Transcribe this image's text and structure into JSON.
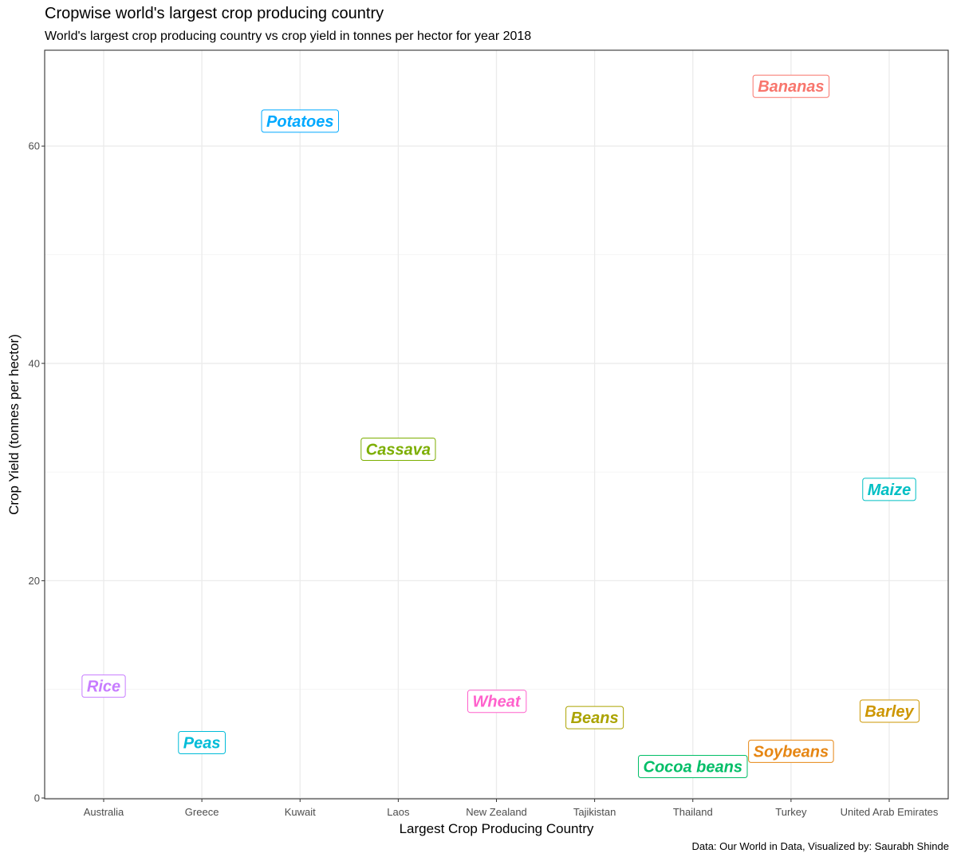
{
  "header": {
    "title": "Cropwise world's largest crop producing country",
    "subtitle": "World's largest crop producing country vs crop yield in tonnes per hector for year 2018"
  },
  "caption": "Data: Our World in Data, Visualized by: Saurabh Shinde",
  "chart_data": {
    "type": "scatter",
    "xlabel": "Largest Crop Producing Country",
    "ylabel": "Crop Yield (tonnes per hector)",
    "categories": [
      "Australia",
      "Greece",
      "Kuwait",
      "Laos",
      "New Zealand",
      "Tajikistan",
      "Thailand",
      "Turkey",
      "United Arab Emirates"
    ],
    "ylim": [
      0,
      68.5
    ],
    "yticks": [
      0,
      20,
      40,
      60
    ],
    "grid": true,
    "points": [
      {
        "label": "Bananas",
        "x": "Turkey",
        "y": 65.5,
        "color": "#F8766D"
      },
      {
        "label": "Potatoes",
        "x": "Kuwait",
        "y": 62.3,
        "color": "#00A9FF"
      },
      {
        "label": "Cassava",
        "x": "Laos",
        "y": 32.1,
        "color": "#7CAE00"
      },
      {
        "label": "Maize",
        "x": "United Arab Emirates",
        "y": 28.4,
        "color": "#00BFC4"
      },
      {
        "label": "Rice",
        "x": "Australia",
        "y": 10.3,
        "color": "#C77CFF"
      },
      {
        "label": "Wheat",
        "x": "New Zealand",
        "y": 8.9,
        "color": "#FF61CC"
      },
      {
        "label": "Barley",
        "x": "United Arab Emirates",
        "y": 8.0,
        "color": "#CD9600"
      },
      {
        "label": "Beans",
        "x": "Tajikistan",
        "y": 7.4,
        "color": "#ABA300"
      },
      {
        "label": "Peas",
        "x": "Greece",
        "y": 5.1,
        "color": "#00BCD8"
      },
      {
        "label": "Soybeans",
        "x": "Turkey",
        "y": 4.3,
        "color": "#E68613"
      },
      {
        "label": "Cocoa beans",
        "x": "Thailand",
        "y": 2.9,
        "color": "#00BE67"
      }
    ]
  }
}
